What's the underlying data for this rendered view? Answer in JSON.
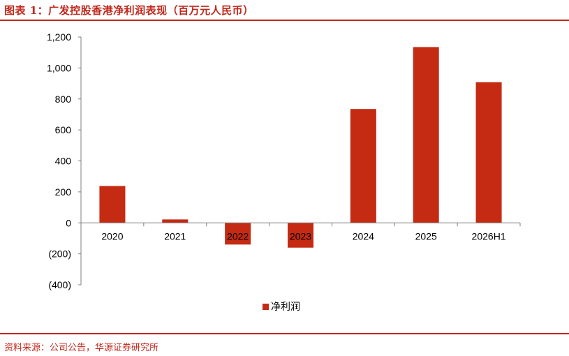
{
  "header": {
    "title": "图表 1：广发控股香港净利润表现（百万元人民币）"
  },
  "footer": {
    "source": "资料来源：公司公告，华源证券研究所"
  },
  "colors": {
    "accent": "#c0281c",
    "bar": "#c52a13"
  },
  "chart_data": {
    "type": "bar",
    "categories": [
      "2020",
      "2021",
      "2022",
      "2023",
      "2024",
      "2025",
      "2026H1"
    ],
    "series": [
      {
        "name": "净利润",
        "values": [
          238,
          22,
          -140,
          -160,
          735,
          1135,
          908
        ]
      }
    ],
    "yticks": [
      "1,200",
      "1,000",
      "800",
      "600",
      "400",
      "200",
      "0",
      "(200)",
      "(400)"
    ],
    "ylim": [
      -400,
      1200
    ],
    "legend_position": "bottom",
    "grid": false
  }
}
